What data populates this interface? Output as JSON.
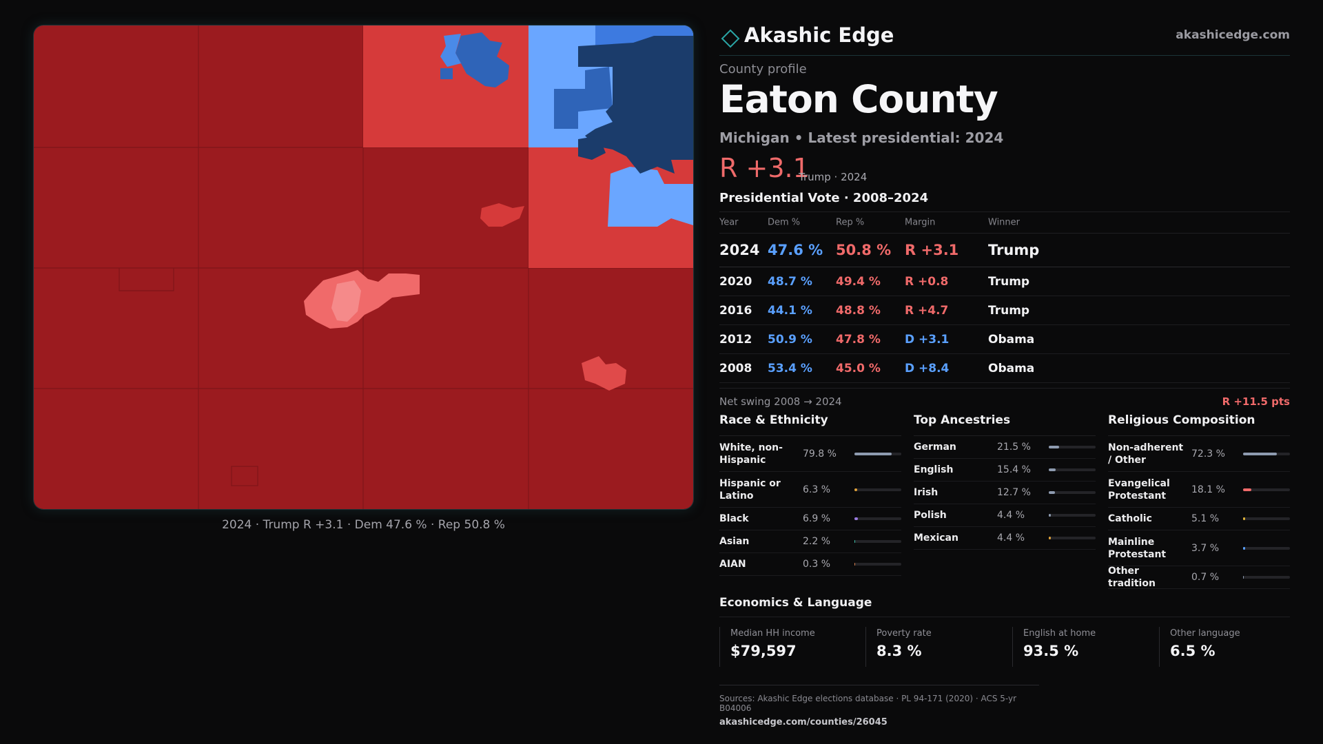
{
  "colors": {
    "rep_strong": "#9b1b1f",
    "rep_mid": "#d63a3a",
    "rep_light": "#f06a6a",
    "dem_light": "#6aa6ff",
    "dem_mid": "#2f6fd6",
    "dem_strong": "#173a6a",
    "accent": "#1c3538"
  },
  "map": {
    "caption": "2024 · Trump R +3.1 · Dem 47.6 % · Rep 50.8 %"
  },
  "brand": {
    "icon": "diamond-icon",
    "name": "Akashic Edge",
    "url": "akashicedge.com"
  },
  "header": {
    "kicker": "County profile",
    "title": "Eaton County",
    "subtitle": "Michigan • Latest presidential: 2024",
    "margin": "R +3.1",
    "margin_note": "Trump · 2024"
  },
  "vote": {
    "title": "Presidential Vote · 2008–2024",
    "columns": [
      "Year",
      "Dem %",
      "Rep %",
      "Margin",
      "Winner"
    ],
    "rows": [
      {
        "year": "2024",
        "dem": "47.6 %",
        "rep": "50.8 %",
        "margin": "R +3.1",
        "winner": "Trump"
      },
      {
        "year": "2020",
        "dem": "48.7 %",
        "rep": "49.4 %",
        "margin": "R +0.8",
        "winner": "Trump"
      },
      {
        "year": "2016",
        "dem": "44.1 %",
        "rep": "48.8 %",
        "margin": "R +4.7",
        "winner": "Trump"
      },
      {
        "year": "2012",
        "dem": "50.9 %",
        "rep": "47.8 %",
        "margin": "D +3.1",
        "winner": "Obama"
      },
      {
        "year": "2008",
        "dem": "53.4 %",
        "rep": "45.0 %",
        "margin": "D +8.4",
        "winner": "Obama"
      }
    ],
    "swing_label": "Net swing 2008 → 2024",
    "swing_value": "R +11.5 pts"
  },
  "race": {
    "title": "Race & Ethnicity",
    "rows": [
      {
        "label": "White, non-Hispanic",
        "pct": "79.8 %",
        "value": 79.8,
        "color": "#8e9bb0"
      },
      {
        "label": "Hispanic or Latino",
        "pct": "6.3 %",
        "value": 6.3,
        "color": "#e0a23a"
      },
      {
        "label": "Black",
        "pct": "6.9 %",
        "value": 6.9,
        "color": "#9a7be0"
      },
      {
        "label": "Asian",
        "pct": "2.2 %",
        "value": 2.2,
        "color": "#3bbfa8"
      },
      {
        "label": "AIAN",
        "pct": "0.3 %",
        "value": 0.3,
        "color": "#d47b4a"
      }
    ]
  },
  "ancestry": {
    "title": "Top Ancestries",
    "rows": [
      {
        "label": "German",
        "pct": "21.5 %",
        "value": 21.5,
        "color": "#8e9bb0"
      },
      {
        "label": "English",
        "pct": "15.4 %",
        "value": 15.4,
        "color": "#8e9bb0"
      },
      {
        "label": "Irish",
        "pct": "12.7 %",
        "value": 12.7,
        "color": "#8e9bb0"
      },
      {
        "label": "Polish",
        "pct": "4.4 %",
        "value": 4.4,
        "color": "#8e9bb0"
      },
      {
        "label": "Mexican",
        "pct": "4.4 %",
        "value": 4.4,
        "color": "#e0a23a"
      }
    ]
  },
  "religion": {
    "title": "Religious Composition",
    "rows": [
      {
        "label": "Non-adherent / Other",
        "pct": "72.3 %",
        "value": 72.3,
        "color": "#8e9bb0"
      },
      {
        "label": "Evangelical Protestant",
        "pct": "18.1 %",
        "value": 18.1,
        "color": "#f06a6a"
      },
      {
        "label": "Catholic",
        "pct": "5.1 %",
        "value": 5.1,
        "color": "#e0b43a"
      },
      {
        "label": "Mainline Protestant",
        "pct": "3.7 %",
        "value": 3.7,
        "color": "#5aa0ff"
      },
      {
        "label": "Other tradition",
        "pct": "0.7 %",
        "value": 0.7,
        "color": "#8e9bb0"
      }
    ]
  },
  "economics": {
    "title": "Economics & Language",
    "items": [
      {
        "label": "Median HH income",
        "value": "$79,597"
      },
      {
        "label": "Poverty rate",
        "value": "8.3 %"
      },
      {
        "label": "English at home",
        "value": "93.5 %"
      },
      {
        "label": "Other language",
        "value": "6.5 %"
      }
    ]
  },
  "sources": {
    "text": "Sources: Akashic Edge elections database · PL 94-171 (2020) · ACS 5-yr B04006",
    "url": "akashicedge.com/counties/26045"
  }
}
